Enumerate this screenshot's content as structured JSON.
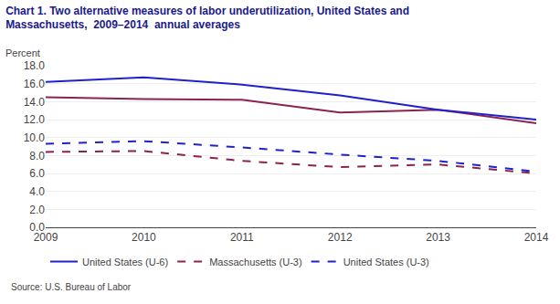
{
  "chart_data": {
    "type": "line",
    "title": "Chart 1. Two alternative measures of labor underutilization, United States and\nMassachusetts,  2009–2014  annual averages",
    "ylabel": "Percent",
    "annotations": [
      "Source: U.S. Bureau of Labor"
    ],
    "x": [
      2009,
      2010,
      2011,
      2012,
      2013,
      2014
    ],
    "xlim": [
      2009,
      2014
    ],
    "xticks": [
      2009,
      2010,
      2011,
      2012,
      2013,
      2014
    ],
    "ylim": [
      0.0,
      18.0
    ],
    "yticks": [
      {
        "value": 0.0,
        "label": "0.0"
      },
      {
        "value": 2.0,
        "label": "2.0"
      },
      {
        "value": 4.0,
        "label": "4.0"
      },
      {
        "value": 6.0,
        "label": "6.0"
      },
      {
        "value": 8.0,
        "label": "8.0"
      },
      {
        "value": 10.0,
        "label": "10.0"
      },
      {
        "value": 12.0,
        "label": "12.0"
      },
      {
        "value": 14.0,
        "label": "14.0"
      },
      {
        "value": 16.0,
        "label": "16.0"
      },
      {
        "value": 18.0,
        "label": "18.0"
      }
    ],
    "grid": true,
    "legend": "bottom",
    "series": [
      {
        "color": "#8b2252",
        "line_style": "solid",
        "values": [
          14.5,
          14.3,
          14.2,
          12.8,
          13.1,
          11.6
        ]
      },
      {
        "name": "United States (U-6)",
        "color": "#2020cc",
        "line_style": "solid",
        "values": [
          16.2,
          16.7,
          15.9,
          14.7,
          13.1,
          12.0
        ]
      },
      {
        "name": "Massachusetts (U-3)",
        "color": "#8b2252",
        "line_style": "dash",
        "values": [
          8.4,
          8.5,
          7.4,
          6.7,
          7.0,
          6.0
        ]
      },
      {
        "name": "United States (U-3)",
        "color": "#2020cc",
        "line_style": "dash",
        "values": [
          9.3,
          9.6,
          8.9,
          8.1,
          7.4,
          6.2
        ]
      }
    ]
  }
}
